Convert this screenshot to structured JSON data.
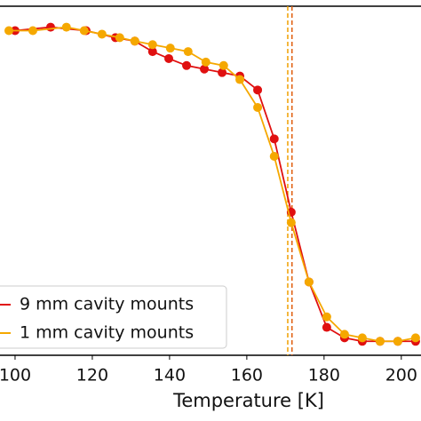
{
  "chart_data": {
    "type": "line",
    "x_label": "Temperature [K]",
    "xlim": [
      96.1,
      205.1
    ],
    "xticks": [
      100,
      120,
      140,
      160,
      180,
      200
    ],
    "ylim": [
      0,
      1
    ],
    "legend": "lower left",
    "vlines": [
      {
        "x": 170.6,
        "color": "#f0a000"
      },
      {
        "x": 171.7,
        "color": "#e06010"
      }
    ],
    "series": [
      {
        "name": "9 mm cavity mounts",
        "color": "#e01010",
        "x": [
          100,
          109.2,
          118.4,
          126,
          131,
          135.6,
          139.8,
          144.4,
          149,
          153.6,
          158.2,
          162.8,
          167.1,
          171.5,
          176.1,
          180.7,
          185.3,
          189.9,
          194.5,
          199.1,
          203.7
        ],
        "values": [
          0.93,
          0.94,
          0.93,
          0.91,
          0.9,
          0.87,
          0.85,
          0.83,
          0.82,
          0.81,
          0.8,
          0.76,
          0.62,
          0.41,
          0.21,
          0.08,
          0.05,
          0.04,
          0.04,
          0.04,
          0.04
        ]
      },
      {
        "name": "1 mm cavity mounts",
        "color": "#f5a800",
        "x": [
          98.4,
          104.6,
          113.3,
          117.9,
          122.5,
          127.1,
          131,
          135.6,
          140.2,
          144.8,
          149.4,
          154,
          158.2,
          162.8,
          167.1,
          171.5,
          176.1,
          180.7,
          185.3,
          189.9,
          194.5,
          199.1,
          203.7
        ],
        "values": [
          0.93,
          0.93,
          0.94,
          0.93,
          0.92,
          0.91,
          0.9,
          0.89,
          0.88,
          0.87,
          0.84,
          0.83,
          0.79,
          0.71,
          0.57,
          0.38,
          0.21,
          0.11,
          0.06,
          0.05,
          0.04,
          0.04,
          0.05
        ]
      }
    ]
  }
}
